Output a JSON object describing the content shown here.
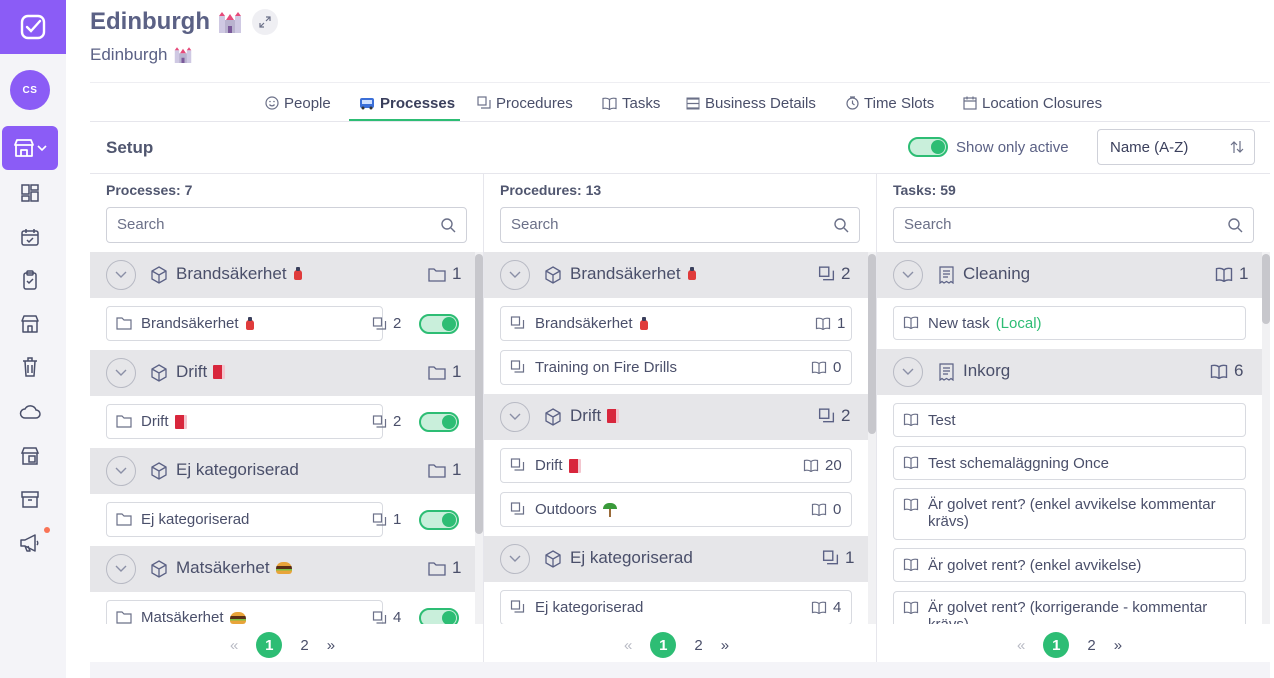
{
  "header": {
    "title": "Edinburgh",
    "subtitle": "Edinburgh",
    "avatar_initials": "CS"
  },
  "tabs": [
    {
      "label": "People",
      "icon": "smiley-icon"
    },
    {
      "label": "Processes",
      "icon": "bus-icon",
      "active": true
    },
    {
      "label": "Procedures",
      "icon": "stack-icon"
    },
    {
      "label": "Tasks",
      "icon": "book-icon"
    },
    {
      "label": "Business Details",
      "icon": "list-icon"
    },
    {
      "label": "Time Slots",
      "icon": "clock-icon"
    },
    {
      "label": "Location Closures",
      "icon": "calendar-icon"
    }
  ],
  "setup": {
    "title": "Setup",
    "show_only_active_label": "Show only active",
    "show_only_active": true,
    "sort_value": "Name (A-Z)"
  },
  "columns": {
    "processes": {
      "label": "Processes: 7",
      "search_placeholder": "Search",
      "groups": [
        {
          "name": "Brandsäkerhet",
          "count": "1",
          "items": [
            {
              "name": "Brandsäkerhet",
              "count": "2",
              "active": true
            }
          ]
        },
        {
          "name": "Drift",
          "count": "1",
          "items": [
            {
              "name": "Drift",
              "count": "2",
              "active": true
            }
          ]
        },
        {
          "name": "Ej kategoriserad",
          "count": "1",
          "items": [
            {
              "name": "Ej kategoriserad",
              "count": "1",
              "active": true
            }
          ]
        },
        {
          "name": "Matsäkerhet",
          "count": "1",
          "items": [
            {
              "name": "Matsäkerhet",
              "count": "4",
              "active": true
            }
          ]
        }
      ],
      "pager": {
        "prev": "«",
        "pages": [
          "1",
          "2"
        ],
        "current": "1",
        "next": "»"
      }
    },
    "procedures": {
      "label": "Procedures: 13",
      "search_placeholder": "Search",
      "groups": [
        {
          "name": "Brandsäkerhet",
          "count": "2",
          "items": [
            {
              "name": "Brandsäkerhet",
              "count": "1"
            },
            {
              "name": "Training on Fire Drills",
              "count": "0"
            }
          ]
        },
        {
          "name": "Drift",
          "count": "2",
          "items": [
            {
              "name": "Drift",
              "count": "20"
            },
            {
              "name": "Outdoors",
              "count": "0"
            }
          ]
        },
        {
          "name": "Ej kategoriserad",
          "count": "1",
          "items": [
            {
              "name": "Ej kategoriserad",
              "count": "4"
            }
          ]
        }
      ],
      "pager": {
        "prev": "«",
        "pages": [
          "1",
          "2"
        ],
        "current": "1",
        "next": "»"
      }
    },
    "tasks": {
      "label": "Tasks: 59",
      "search_placeholder": "Search",
      "groups": [
        {
          "name": "Cleaning",
          "count": "1",
          "items": [
            {
              "name": "New task",
              "suffix": "(Local)"
            }
          ]
        },
        {
          "name": "Inkorg",
          "count": "6",
          "items": [
            {
              "name": "Test"
            },
            {
              "name": "Test schemaläggning Once"
            },
            {
              "name": "Är golvet rent? (enkel avvikelse kommentar krävs)"
            },
            {
              "name": "Är golvet rent? (enkel avvikelse)"
            },
            {
              "name": "Är golvet rent? (korrigerande - kommentar krävs)"
            }
          ]
        }
      ],
      "pager": {
        "prev": "«",
        "pages": [
          "1",
          "2"
        ],
        "current": "1",
        "next": "»"
      }
    }
  },
  "colors": {
    "accent": "#8b5cf6",
    "success": "#2dbd74",
    "group_bg": "#e6e6e9"
  }
}
